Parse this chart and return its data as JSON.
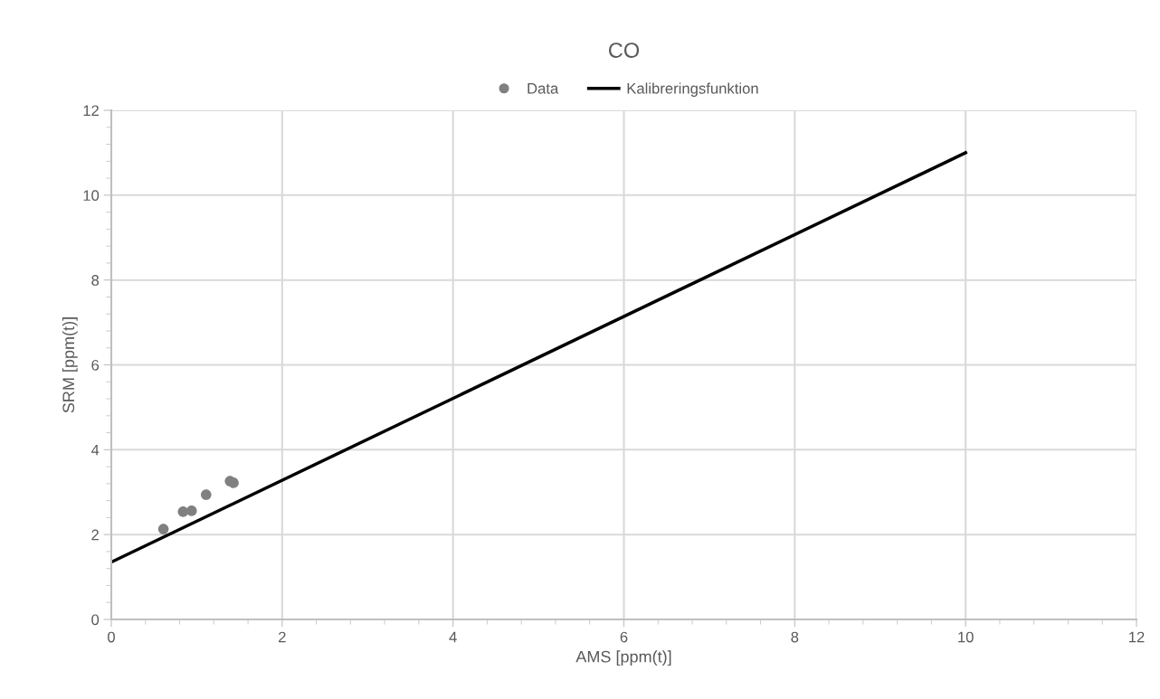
{
  "chart_data": {
    "type": "scatter",
    "title": "CO",
    "xlabel": "AMS [ppm(t)]",
    "ylabel": "SRM [ppm(t)]",
    "series": [
      {
        "name": "Data",
        "color": "#808080",
        "marker": "circle",
        "x": [
          0.61,
          0.84,
          0.94,
          1.11,
          1.39,
          1.43
        ],
        "values": [
          2.13,
          2.54,
          2.56,
          2.94,
          3.26,
          3.22
        ]
      },
      {
        "name": "Kalibreringsfunktion",
        "type": "line",
        "color": "#000000",
        "line_style": "solid",
        "x": [
          0,
          10
        ],
        "values": [
          1.35,
          11.0
        ]
      }
    ],
    "xlim": [
      0,
      12
    ],
    "xticks": [
      0,
      2,
      4,
      6,
      8,
      10,
      12
    ],
    "ylim": [
      0,
      12
    ],
    "yticks": [
      0,
      2,
      4,
      6,
      8,
      10,
      12
    ],
    "grid": true,
    "legend": "top"
  }
}
